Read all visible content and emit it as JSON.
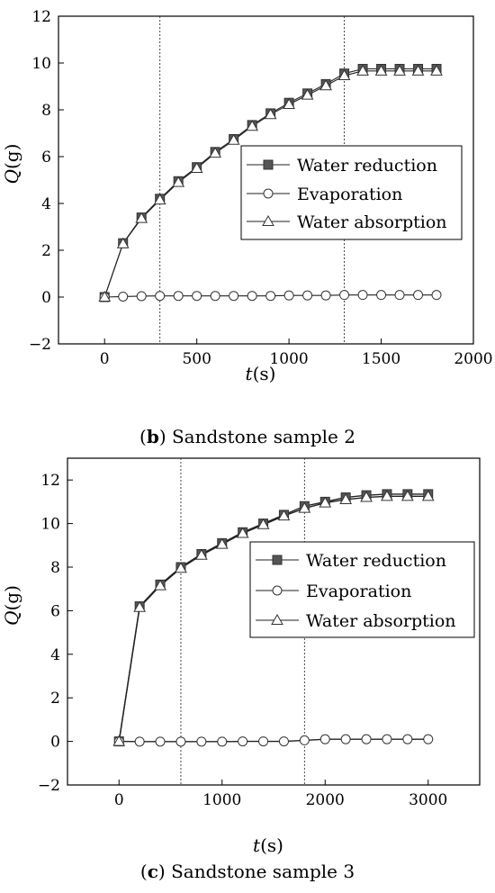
{
  "chart_data": [
    {
      "type": "line",
      "caption_letter": "b",
      "caption_rest": ") Sandstone sample 2",
      "xlabel_var": "t",
      "xlabel_unit": "(s)",
      "ylabel_var": "Q",
      "ylabel_unit": "(g)",
      "xlim": [
        -250,
        2000
      ],
      "ylim": [
        -2,
        12
      ],
      "xticks": [
        0,
        500,
        1000,
        1500,
        2000
      ],
      "yticks": [
        -2,
        0,
        2,
        4,
        6,
        8,
        10,
        12
      ],
      "ytick_labels": [
        "−2",
        "0",
        "2",
        "4",
        "6",
        "8",
        "10",
        "12"
      ],
      "vlines": [
        300,
        1300
      ],
      "legend_position": "center-right",
      "x": [
        0,
        100,
        200,
        300,
        400,
        500,
        600,
        700,
        800,
        900,
        1000,
        1100,
        1200,
        1300,
        1400,
        1500,
        1600,
        1700,
        1800
      ],
      "series": [
        {
          "name": "Water reduction",
          "marker": "square",
          "values": [
            0,
            2.3,
            3.4,
            4.2,
            4.95,
            5.55,
            6.2,
            6.75,
            7.35,
            7.85,
            8.3,
            8.7,
            9.1,
            9.55,
            9.75,
            9.75,
            9.75,
            9.75,
            9.75
          ]
        },
        {
          "name": "Evaporation",
          "marker": "circle",
          "values": [
            0,
            0.02,
            0.04,
            0.05,
            0.05,
            0.05,
            0.05,
            0.05,
            0.05,
            0.05,
            0.07,
            0.07,
            0.07,
            0.09,
            0.09,
            0.09,
            0.09,
            0.09,
            0.09
          ]
        },
        {
          "name": "Water absorption",
          "marker": "triangle",
          "values": [
            0,
            2.28,
            3.36,
            4.15,
            4.9,
            5.5,
            6.15,
            6.7,
            7.3,
            7.8,
            8.23,
            8.63,
            9.03,
            9.46,
            9.66,
            9.66,
            9.66,
            9.66,
            9.66
          ]
        }
      ]
    },
    {
      "type": "line",
      "caption_letter": "c",
      "caption_rest": ") Sandstone sample 3",
      "xlabel_var": "t",
      "xlabel_unit": "(s)",
      "ylabel_var": "Q",
      "ylabel_unit": "(g)",
      "xlim": [
        -500,
        3500
      ],
      "ylim": [
        -2,
        13
      ],
      "xticks": [
        0,
        1000,
        2000,
        3000
      ],
      "yticks": [
        -2,
        0,
        2,
        4,
        6,
        8,
        10,
        12
      ],
      "ytick_labels": [
        "−2",
        "0",
        "2",
        "4",
        "6",
        "8",
        "10",
        "12"
      ],
      "vlines": [
        600,
        1800
      ],
      "legend_position": "center-right",
      "x": [
        0,
        200,
        400,
        600,
        800,
        1000,
        1200,
        1400,
        1600,
        1800,
        2000,
        2200,
        2400,
        2600,
        2800,
        3000
      ],
      "series": [
        {
          "name": "Water reduction",
          "marker": "square",
          "values": [
            0,
            6.2,
            7.2,
            8.0,
            8.6,
            9.1,
            9.6,
            10.0,
            10.4,
            10.8,
            11.0,
            11.2,
            11.3,
            11.35,
            11.35,
            11.35
          ]
        },
        {
          "name": "Evaporation",
          "marker": "circle",
          "values": [
            0,
            -0.01,
            -0.01,
            -0.01,
            -0.01,
            -0.01,
            0,
            0,
            0,
            0.05,
            0.1,
            0.1,
            0.1,
            0.1,
            0.1,
            0.1
          ]
        },
        {
          "name": "Water absorption",
          "marker": "triangle",
          "values": [
            0,
            6.15,
            7.15,
            7.95,
            8.55,
            9.05,
            9.55,
            9.95,
            10.35,
            10.7,
            10.95,
            11.1,
            11.2,
            11.25,
            11.25,
            11.25
          ]
        }
      ]
    }
  ]
}
